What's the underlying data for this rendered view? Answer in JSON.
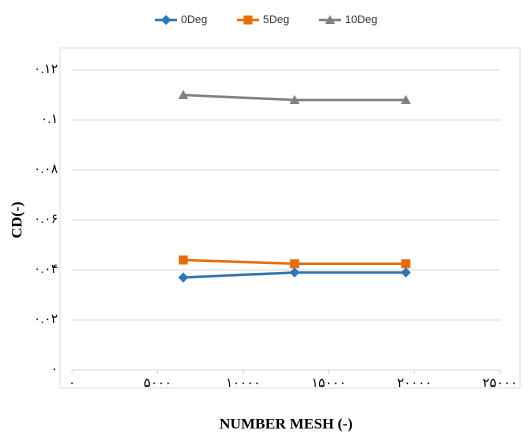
{
  "chart_data": {
    "type": "line",
    "x_label": "NUMBER MESH (-)",
    "y_label": "CD(-)",
    "xlim": [
      0,
      25000
    ],
    "ylim": [
      0,
      0.12
    ],
    "xticks": [
      {
        "value": 0,
        "label": "٠"
      },
      {
        "value": 5000,
        "label": "۵٠٠٠"
      },
      {
        "value": 10000,
        "label": "١٠٠٠٠"
      },
      {
        "value": 15000,
        "label": "١۵٠٠٠"
      },
      {
        "value": 20000,
        "label": "٢٠٠٠٠"
      },
      {
        "value": 25000,
        "label": "٢۵٠٠٠"
      }
    ],
    "yticks": [
      {
        "value": 0,
        "label": "٠"
      },
      {
        "value": 0.02,
        "label": "٠.٠٢"
      },
      {
        "value": 0.04,
        "label": "٠.٠۴"
      },
      {
        "value": 0.06,
        "label": "٠.٠۶"
      },
      {
        "value": 0.08,
        "label": "٠.٠٨"
      },
      {
        "value": 0.1,
        "label": "٠.١"
      },
      {
        "value": 0.12,
        "label": "٠.١٢"
      }
    ],
    "grid": true,
    "legend": "top",
    "x": [
      6500,
      13000,
      19500
    ],
    "series": [
      {
        "name": "0Deg",
        "color": "#2e75b6",
        "marker": "diamond",
        "values": [
          0.037,
          0.039,
          0.039
        ]
      },
      {
        "name": "5Deg",
        "color": "#e46c0a",
        "marker": "square",
        "values": [
          0.044,
          0.0425,
          0.0425
        ]
      },
      {
        "name": "10Deg",
        "color": "#808080",
        "marker": "triangle",
        "values": [
          0.11,
          0.108,
          0.108
        ]
      }
    ]
  }
}
